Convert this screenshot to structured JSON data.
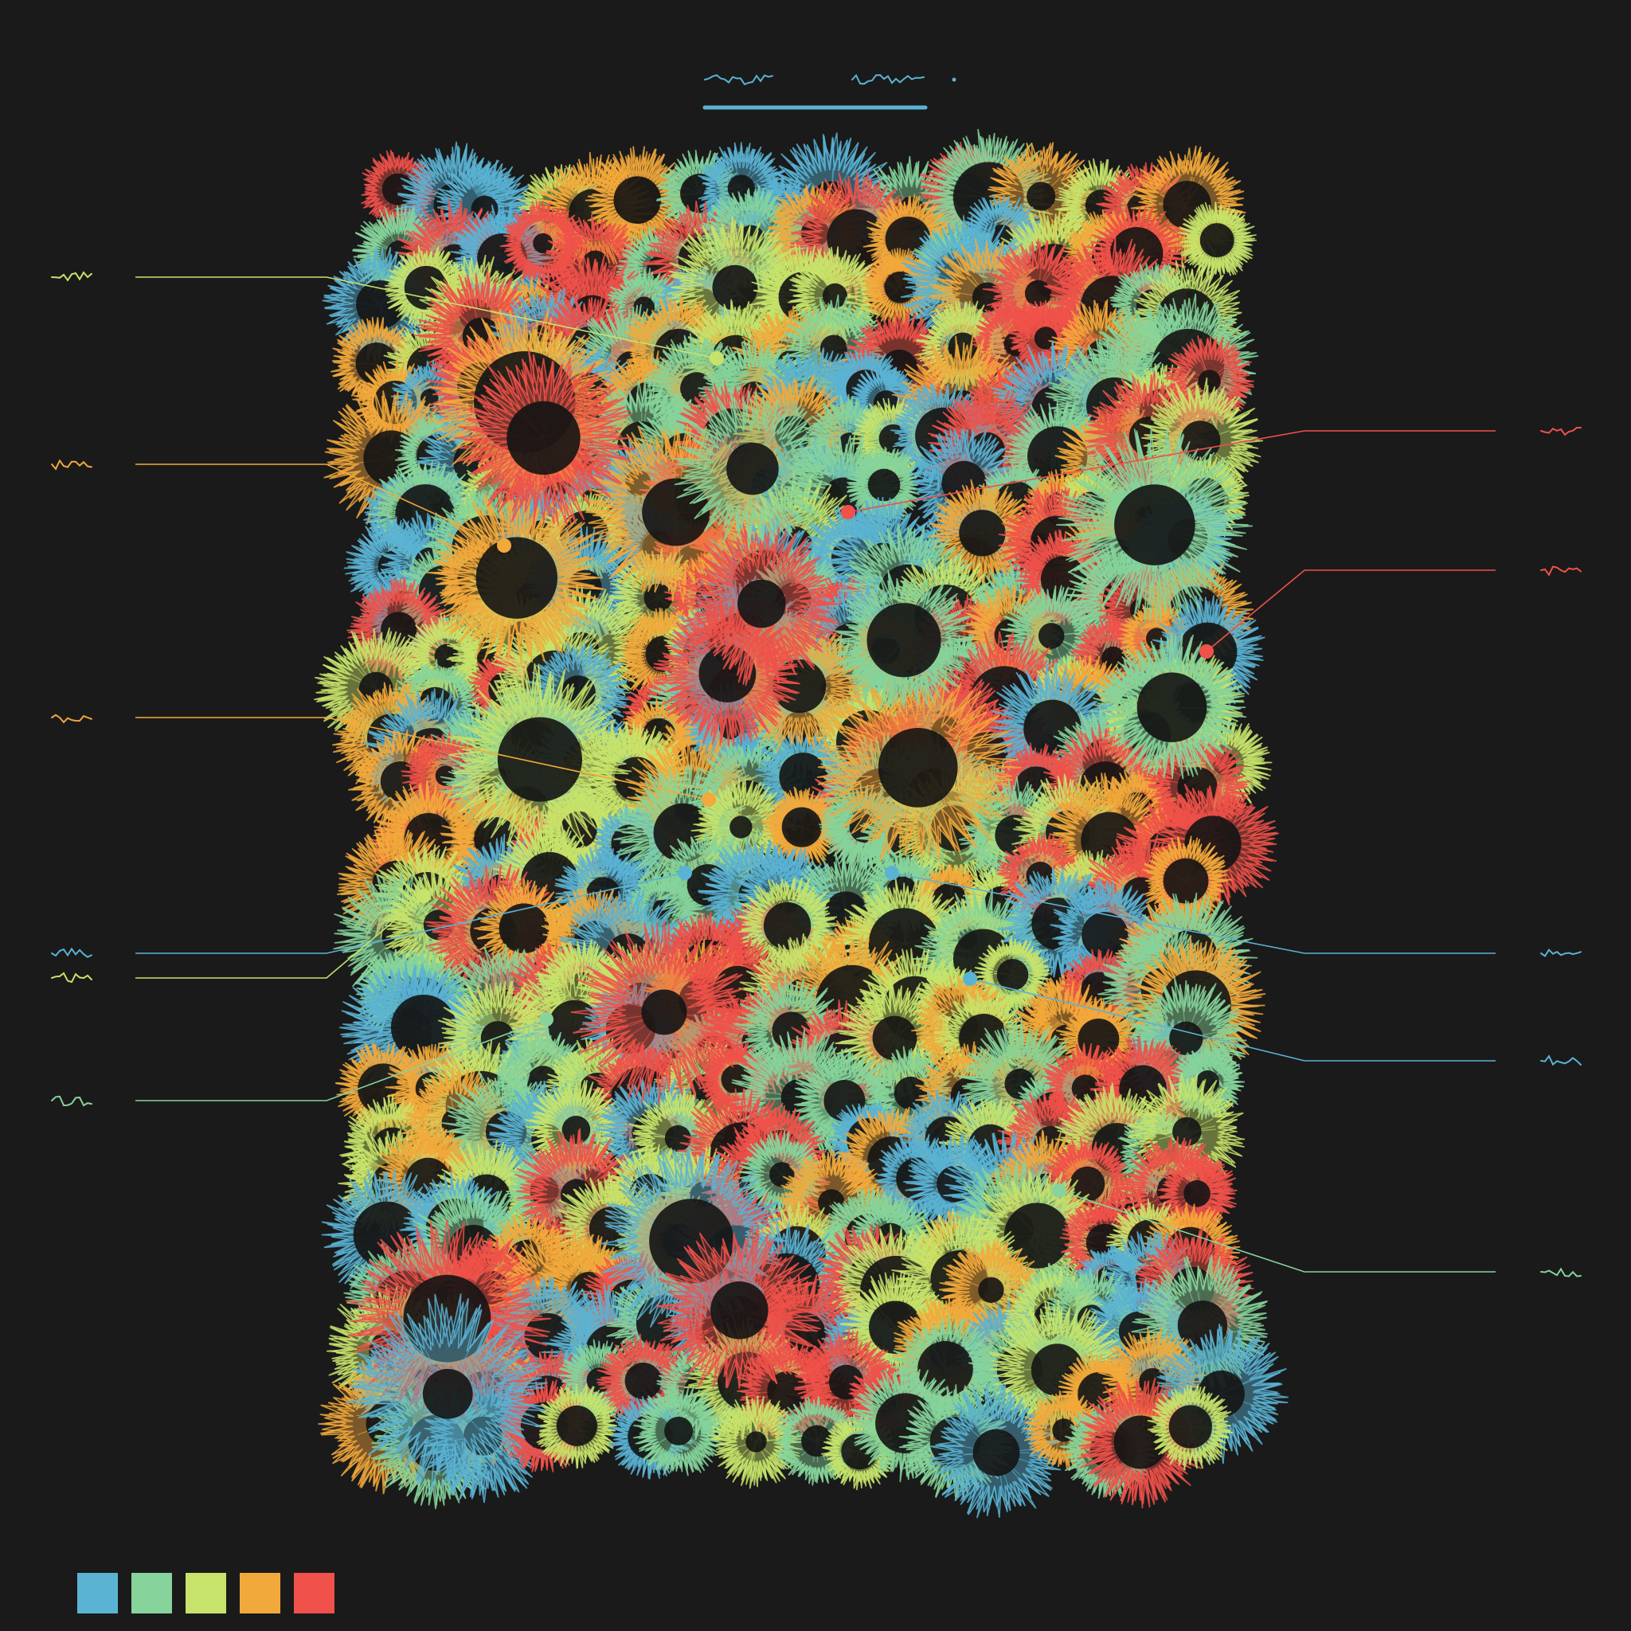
{
  "palette": [
    "#5bb3d4",
    "#86d49b",
    "#c7e36b",
    "#f2a93b",
    "#f0514a"
  ],
  "title": {
    "script_glyphs": "scribble-text",
    "color": "#5bb3d4"
  },
  "callouts": [
    {
      "id": "left-1",
      "side": "left",
      "color": "#c7e36b",
      "glyph": "scribble-label"
    },
    {
      "id": "left-2",
      "side": "left",
      "color": "#f2a93b",
      "glyph": "scribble-label"
    },
    {
      "id": "left-3",
      "side": "left",
      "color": "#f2a93b",
      "glyph": "scribble-label"
    },
    {
      "id": "left-4",
      "side": "left",
      "color": "#5bb3d4",
      "glyph": "scribble-label"
    },
    {
      "id": "left-5",
      "side": "left",
      "color": "#c7e36b",
      "glyph": "scribble-label"
    },
    {
      "id": "left-6",
      "side": "left",
      "color": "#86d49b",
      "glyph": "scribble-label"
    },
    {
      "id": "right-1",
      "side": "right",
      "color": "#f0514a",
      "glyph": "scribble-label"
    },
    {
      "id": "right-2",
      "side": "right",
      "color": "#f0514a",
      "glyph": "scribble-label"
    },
    {
      "id": "right-3",
      "side": "right",
      "color": "#5bb3d4",
      "glyph": "scribble-label"
    },
    {
      "id": "right-4",
      "side": "right",
      "color": "#5bb3d4",
      "glyph": "scribble-label"
    },
    {
      "id": "right-5",
      "side": "right",
      "color": "#86d49b",
      "glyph": "scribble-label"
    }
  ],
  "background": "#1a1a1a"
}
